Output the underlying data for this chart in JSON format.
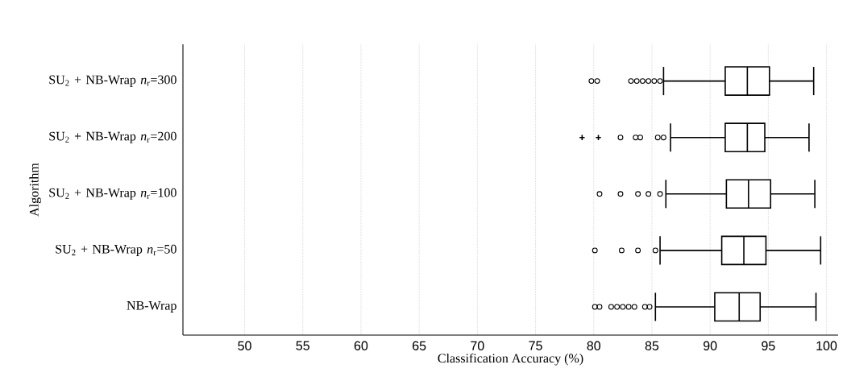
{
  "chart_data": {
    "type": "box",
    "orientation": "horizontal",
    "xlabel": "Classification Accuracy (%)",
    "ylabel": "Algorithm",
    "categories": [
      "SU$_{2}$ + NB-Wrap *n*$_{r}$=300",
      "SU$_{2}$ + NB-Wrap *n*$_{r}$=200",
      "SU$_{2}$ + NB-Wrap *n*$_{r}$=100",
      "SU$_{2}$ + NB-Wrap *n*$_{r}$=50",
      "NB-Wrap"
    ],
    "xlim": [
      44.7,
      101
    ],
    "xticks": [
      50,
      55,
      60,
      65,
      70,
      75,
      80,
      85,
      90,
      95,
      100
    ],
    "grid": "x",
    "series": [
      {
        "type": "box",
        "color": "#000000",
        "marker": "circle",
        "boxes": [
          {
            "low": 86.0,
            "q1": 91.3,
            "median": 93.2,
            "q3": 95.1,
            "high": 98.9,
            "outliers": [
              79.8,
              80.3,
              83.2,
              83.7,
              84.2,
              84.7,
              85.2,
              85.7
            ]
          },
          {
            "low": 86.6,
            "q1": 91.3,
            "median": 93.2,
            "q3": 94.7,
            "high": 98.5,
            "outliers": [
              82.3,
              83.6,
              84.0,
              85.5,
              86.0
            ]
          },
          {
            "low": 86.2,
            "q1": 91.4,
            "median": 93.3,
            "q3": 95.2,
            "high": 99.0,
            "outliers": [
              80.5,
              82.3,
              83.8,
              84.7,
              85.7
            ]
          },
          {
            "low": 85.7,
            "q1": 91.0,
            "median": 92.9,
            "q3": 94.8,
            "high": 99.5,
            "outliers": [
              80.1,
              82.4,
              83.8,
              85.3
            ]
          },
          {
            "low": 85.3,
            "q1": 90.4,
            "median": 92.5,
            "q3": 94.3,
            "high": 99.1,
            "outliers": [
              80.1,
              80.5,
              81.5,
              82.0,
              82.5,
              83.0,
              83.5,
              84.4,
              84.8
            ]
          }
        ]
      },
      {
        "type": "scatter",
        "color": "#000000",
        "marker": "cross",
        "x": [
          "SU$_{2}$ + NB-Wrap *n*$_{r}$=200",
          "SU$_{2}$ + NB-Wrap *n*$_{r}$=200"
        ],
        "values": [
          79.0,
          80.4
        ]
      }
    ]
  }
}
